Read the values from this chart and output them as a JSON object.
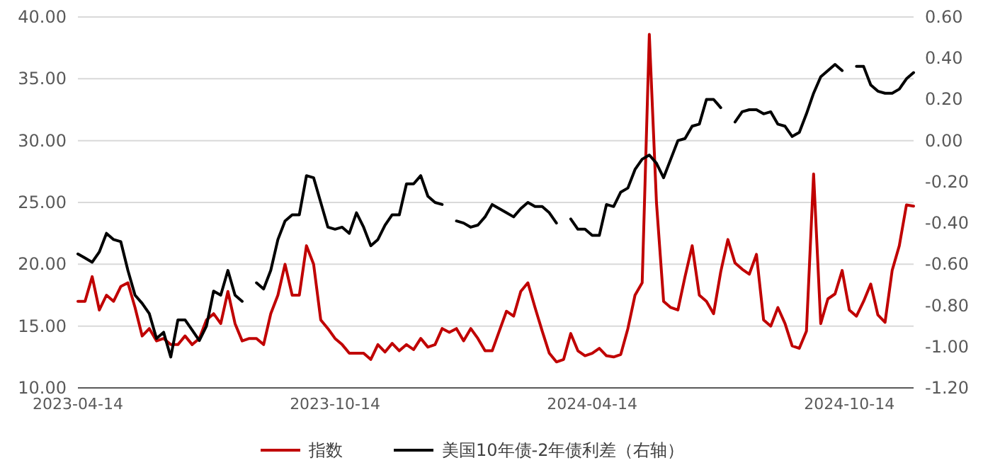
{
  "chart_data": {
    "type": "line",
    "categories": [
      "2023-04-14",
      null,
      null,
      null,
      null,
      null,
      null,
      null,
      null,
      null,
      null,
      null,
      null,
      null,
      null,
      null,
      null,
      null,
      null,
      null,
      null,
      null,
      null,
      null,
      null,
      null,
      null,
      null,
      null,
      null,
      null,
      null,
      null,
      null,
      null,
      null,
      "2023-10-14",
      null,
      null,
      null,
      null,
      null,
      null,
      null,
      null,
      null,
      null,
      null,
      null,
      null,
      null,
      null,
      null,
      null,
      null,
      null,
      null,
      null,
      null,
      null,
      null,
      null,
      null,
      null,
      null,
      null,
      null,
      null,
      null,
      null,
      null,
      null,
      "2024-04-14",
      null,
      null,
      null,
      null,
      null,
      null,
      null,
      null,
      null,
      null,
      null,
      null,
      null,
      null,
      null,
      null,
      null,
      null,
      null,
      null,
      null,
      null,
      null,
      null,
      null,
      null,
      null,
      null,
      null,
      null,
      null,
      null,
      null,
      null,
      null,
      "2024-10-14",
      null,
      null,
      null,
      null,
      null,
      null,
      null,
      null,
      null
    ],
    "series": [
      {
        "name": "指数",
        "color": "#c00000",
        "values": [
          17,
          17,
          19,
          16.3,
          17.5,
          17,
          18.2,
          18.5,
          16.5,
          14.2,
          14.8,
          13.8,
          14,
          13.5,
          13.5,
          14.2,
          13.5,
          14,
          15.5,
          16,
          15.2,
          17.8,
          15.2,
          13.8,
          14,
          14,
          13.5,
          16,
          17.5,
          20,
          17.5,
          17.5,
          21.5,
          20,
          15.5,
          14.8,
          14,
          13.5,
          12.8,
          12.8,
          12.8,
          12.3,
          13.5,
          12.9,
          13.6,
          13,
          13.5,
          13.1,
          14,
          13.3,
          13.5,
          14.8,
          14.5,
          14.8,
          13.8,
          14.8,
          14,
          13,
          13,
          14.6,
          16.2,
          15.8,
          17.8,
          18.5,
          16.5,
          14.6,
          12.8,
          12.1,
          12.3,
          14.4,
          13,
          12.6,
          12.8,
          13.2,
          12.6,
          12.5,
          12.7,
          14.8,
          17.5,
          18.5,
          38.6,
          25,
          17,
          16.5,
          16.3,
          19,
          21.5,
          17.5,
          17,
          16,
          19.4,
          22,
          20.1,
          19.6,
          19.2,
          20.8,
          15.5,
          15,
          16.5,
          15.2,
          13.4,
          13.2,
          14.6,
          27.3,
          15.2,
          17.2,
          17.6,
          19.5,
          16.3,
          15.8,
          17,
          18.4,
          15.9,
          15.3,
          19.5,
          21.5,
          24.8,
          24.7
        ]
      },
      {
        "name": "美国10年债-2年债利差（右轴）",
        "color": "#000000",
        "axis": "y2",
        "values": [
          -0.55,
          -0.57,
          -0.59,
          -0.54,
          -0.45,
          -0.48,
          -0.49,
          -0.63,
          -0.75,
          -0.79,
          -0.84,
          -0.96,
          -0.93,
          -1.05,
          -0.87,
          -0.87,
          -0.92,
          -0.97,
          -0.9,
          -0.73,
          -0.75,
          -0.63,
          -0.75,
          -0.78,
          null,
          -0.69,
          -0.72,
          -0.63,
          -0.48,
          -0.39,
          -0.36,
          -0.36,
          -0.17,
          -0.18,
          -0.3,
          -0.42,
          -0.43,
          -0.42,
          -0.45,
          -0.35,
          -0.42,
          -0.51,
          -0.48,
          -0.41,
          -0.36,
          -0.36,
          -0.21,
          -0.21,
          -0.17,
          -0.27,
          -0.3,
          -0.31,
          null,
          -0.39,
          -0.4,
          -0.42,
          -0.41,
          -0.37,
          -0.31,
          -0.33,
          -0.35,
          -0.37,
          -0.33,
          -0.3,
          -0.32,
          -0.32,
          -0.35,
          -0.4,
          null,
          -0.38,
          -0.43,
          -0.43,
          -0.46,
          -0.46,
          -0.31,
          -0.32,
          -0.25,
          -0.23,
          -0.14,
          -0.09,
          -0.07,
          -0.11,
          -0.18,
          -0.09,
          0.0,
          0.01,
          0.07,
          0.08,
          0.2,
          0.2,
          0.16,
          null,
          0.09,
          0.14,
          0.15,
          0.15,
          0.13,
          0.14,
          0.08,
          0.07,
          0.02,
          0.04,
          0.13,
          0.23,
          0.31,
          0.34,
          0.37,
          0.34,
          null,
          0.36,
          0.36,
          0.27,
          0.24,
          0.23,
          0.23,
          0.25,
          0.3,
          0.33
        ]
      }
    ],
    "ylim": [
      10,
      40
    ],
    "yticks": [
      {
        "value": 10,
        "label": "10.00"
      },
      {
        "value": 15,
        "label": "15.00"
      },
      {
        "value": 20,
        "label": "20.00"
      },
      {
        "value": 25,
        "label": "25.00"
      },
      {
        "value": 30,
        "label": "30.00"
      },
      {
        "value": 35,
        "label": "35.00"
      },
      {
        "value": 40,
        "label": "40.00"
      }
    ],
    "y2lim": [
      -1.2,
      0.6
    ],
    "y2ticks": [
      {
        "value": -1.2,
        "label": "-1.20"
      },
      {
        "value": -1.0,
        "label": "-1.00"
      },
      {
        "value": -0.8,
        "label": "-0.80"
      },
      {
        "value": -0.6,
        "label": "-0.60"
      },
      {
        "value": -0.4,
        "label": "-0.40"
      },
      {
        "value": -0.2,
        "label": "-0.20"
      },
      {
        "value": 0,
        "label": "0.00"
      },
      {
        "value": 0.2,
        "label": "0.20"
      },
      {
        "value": 0.4,
        "label": "0.40"
      },
      {
        "value": 0.6,
        "label": "0.60"
      }
    ],
    "grid": "y",
    "legend": "bottom",
    "line_style": "solid"
  }
}
